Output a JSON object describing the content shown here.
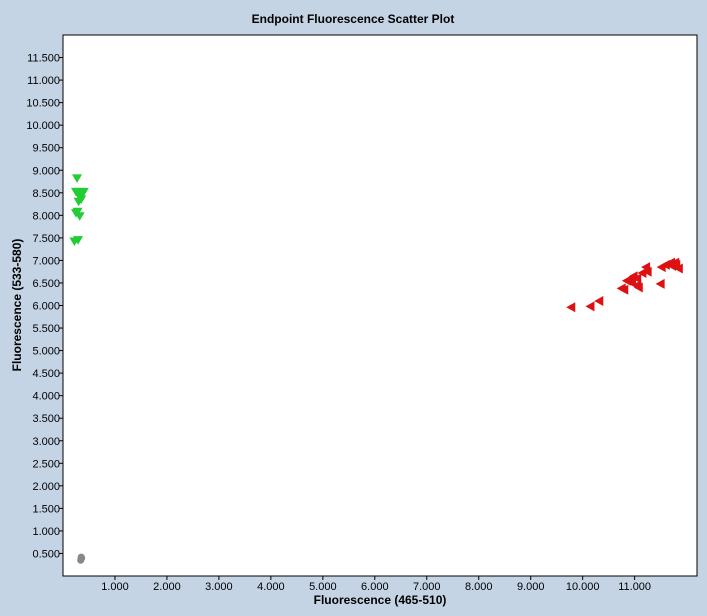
{
  "chart_data": {
    "type": "scatter",
    "title": "Endpoint Fluorescence Scatter Plot",
    "xlabel": "Fluorescence (465-510)",
    "ylabel": "Fluorescence (533-580)",
    "xlim": [
      0,
      12.2
    ],
    "ylim": [
      0,
      12.0
    ],
    "x_ticks": [
      1,
      2,
      3,
      4,
      5,
      6,
      7,
      8,
      9,
      10,
      11
    ],
    "x_tick_labels": [
      "1.000",
      "2.000",
      "3.000",
      "4.000",
      "5.000",
      "6.000",
      "7.000",
      "8.000",
      "9.000",
      "10.000",
      "11.000"
    ],
    "y_ticks": [
      0.5,
      1,
      1.5,
      2,
      2.5,
      3,
      3.5,
      4,
      4.5,
      5,
      5.5,
      6,
      6.5,
      7,
      7.5,
      8,
      8.5,
      9,
      9.5,
      10,
      10.5,
      11,
      11.5
    ],
    "y_tick_labels": [
      "0.500",
      "1.000",
      "1.500",
      "2.000",
      "2.500",
      "3.000",
      "3.500",
      "4.000",
      "4.500",
      "5.000",
      "5.500",
      "6.000",
      "6.500",
      "7.000",
      "7.500",
      "8.000",
      "8.500",
      "9.000",
      "9.500",
      "10.000",
      "10.500",
      "11.000",
      "11.500"
    ],
    "grid": false,
    "legend": "none",
    "series": [
      {
        "marker": "triangle-down",
        "color": "#22cc33",
        "points": [
          [
            0.27,
            8.82
          ],
          [
            0.25,
            8.52
          ],
          [
            0.32,
            8.52
          ],
          [
            0.4,
            8.52
          ],
          [
            0.36,
            8.45
          ],
          [
            0.33,
            8.4
          ],
          [
            0.35,
            8.35
          ],
          [
            0.3,
            8.3
          ],
          [
            0.28,
            8.08
          ],
          [
            0.25,
            8.05
          ],
          [
            0.32,
            7.98
          ],
          [
            0.29,
            7.45
          ],
          [
            0.22,
            7.42
          ]
        ]
      },
      {
        "marker": "triangle-left",
        "color": "#dd1111",
        "points": [
          [
            9.78,
            5.96
          ],
          [
            10.15,
            5.98
          ],
          [
            10.32,
            6.1
          ],
          [
            10.75,
            6.38
          ],
          [
            10.8,
            6.35
          ],
          [
            10.85,
            6.55
          ],
          [
            10.92,
            6.58
          ],
          [
            10.95,
            6.5
          ],
          [
            10.98,
            6.65
          ],
          [
            11.05,
            6.6
          ],
          [
            11.05,
            6.45
          ],
          [
            11.08,
            6.4
          ],
          [
            11.15,
            6.72
          ],
          [
            11.25,
            6.75
          ],
          [
            11.22,
            6.85
          ],
          [
            11.5,
            6.48
          ],
          [
            11.52,
            6.85
          ],
          [
            11.6,
            6.9
          ],
          [
            11.7,
            6.95
          ],
          [
            11.72,
            6.88
          ],
          [
            11.78,
            6.95
          ],
          [
            11.8,
            6.9
          ],
          [
            11.85,
            6.82
          ]
        ]
      },
      {
        "marker": "circle",
        "color": "#888888",
        "points": [
          [
            0.35,
            0.42
          ],
          [
            0.35,
            0.38
          ],
          [
            0.34,
            0.35
          ],
          [
            0.36,
            0.4
          ]
        ]
      }
    ]
  }
}
